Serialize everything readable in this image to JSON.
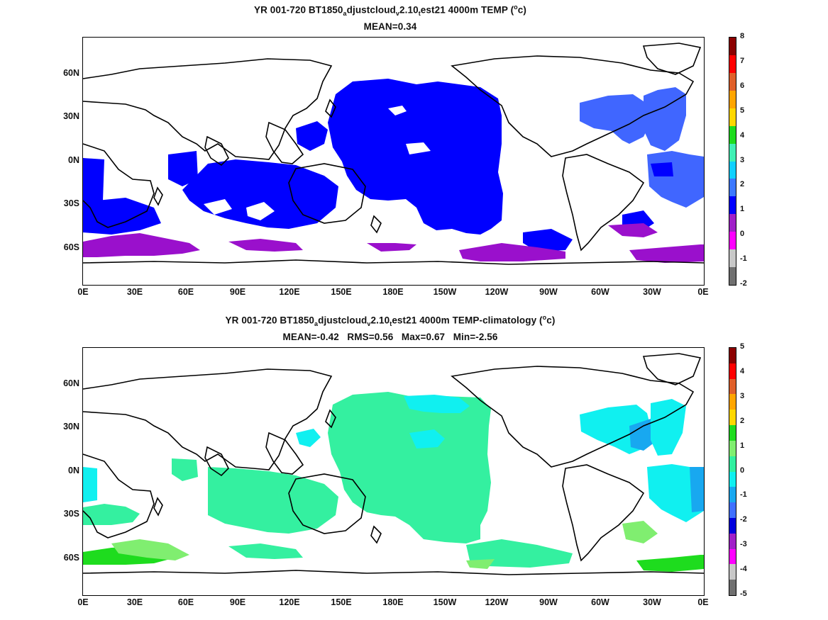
{
  "panels": [
    {
      "id": "top",
      "title_parts": {
        "prefix": "YR 001-720 BT1850",
        "sub1": "a",
        "mid1": "djustcloud",
        "sub2": "v",
        "mid2": "2.10",
        "sub3": "t",
        "suffix_pre": "est21 4000m TEMP (",
        "sup": "o",
        "suffix_post": "c)"
      },
      "stats": "MEAN=0.34",
      "colorbar": {
        "labels": [
          "8",
          "7",
          "6",
          "5",
          "4",
          "3",
          "2",
          "1",
          "0",
          "-1",
          "-2"
        ],
        "colors": [
          "#8b0000",
          "#ff0000",
          "#e0602a",
          "#ffa500",
          "#ffd700",
          "#1edc1e",
          "#40f0b4",
          "#10d0ff",
          "#3c78ff",
          "#0000ff",
          "#a020c8",
          "#ff00ff",
          "#c8c8c8",
          "#707070"
        ]
      },
      "regions": [
        {
          "name": "north-pacific-cold",
          "color": "#0000ff"
        },
        {
          "name": "indian-ocean-cold",
          "color": "#0000ff"
        },
        {
          "name": "north-atlantic-cool",
          "color": "#4066ff"
        },
        {
          "name": "southern-ocean-purple",
          "color": "#9a10cc"
        }
      ]
    },
    {
      "id": "bottom",
      "title_parts": {
        "prefix": "YR 001-720 BT1850",
        "sub1": "a",
        "mid1": "djustcloud",
        "sub2": "v",
        "mid2": "2.10",
        "sub3": "t",
        "suffix_pre": "est21 4000m TEMP-climatology (",
        "sup": "o",
        "suffix_post": "c)"
      },
      "stats": "MEAN=-0.42   RMS=0.56   Max=0.67   Min=-2.56",
      "colorbar": {
        "labels": [
          "5",
          "4",
          "3",
          "2",
          "1",
          "0",
          "-1",
          "-2",
          "-3",
          "-4",
          "-5"
        ],
        "colors": [
          "#8b0000",
          "#ff0000",
          "#e0602a",
          "#ffa500",
          "#ffd700",
          "#1edc1e",
          "#80ee70",
          "#30f0a0",
          "#10f0f0",
          "#18a8f0",
          "#4070ff",
          "#0000dd",
          "#a020c8",
          "#ff00ff",
          "#c8c8c8",
          "#707070"
        ]
      },
      "regions": [
        {
          "name": "pacific-anomaly",
          "color": "#34f0a0"
        },
        {
          "name": "atlantic-anomaly",
          "color": "#10f0f0"
        },
        {
          "name": "southern-ocean-green",
          "color": "#1edc1e"
        }
      ]
    }
  ],
  "axes": {
    "lat_ticks": [
      "60N",
      "30N",
      "0N",
      "30S",
      "60S"
    ],
    "lon_ticks": [
      "0E",
      "30E",
      "60E",
      "90E",
      "120E",
      "150E",
      "180E",
      "150W",
      "120W",
      "90W",
      "60W",
      "30W",
      "0E"
    ]
  }
}
